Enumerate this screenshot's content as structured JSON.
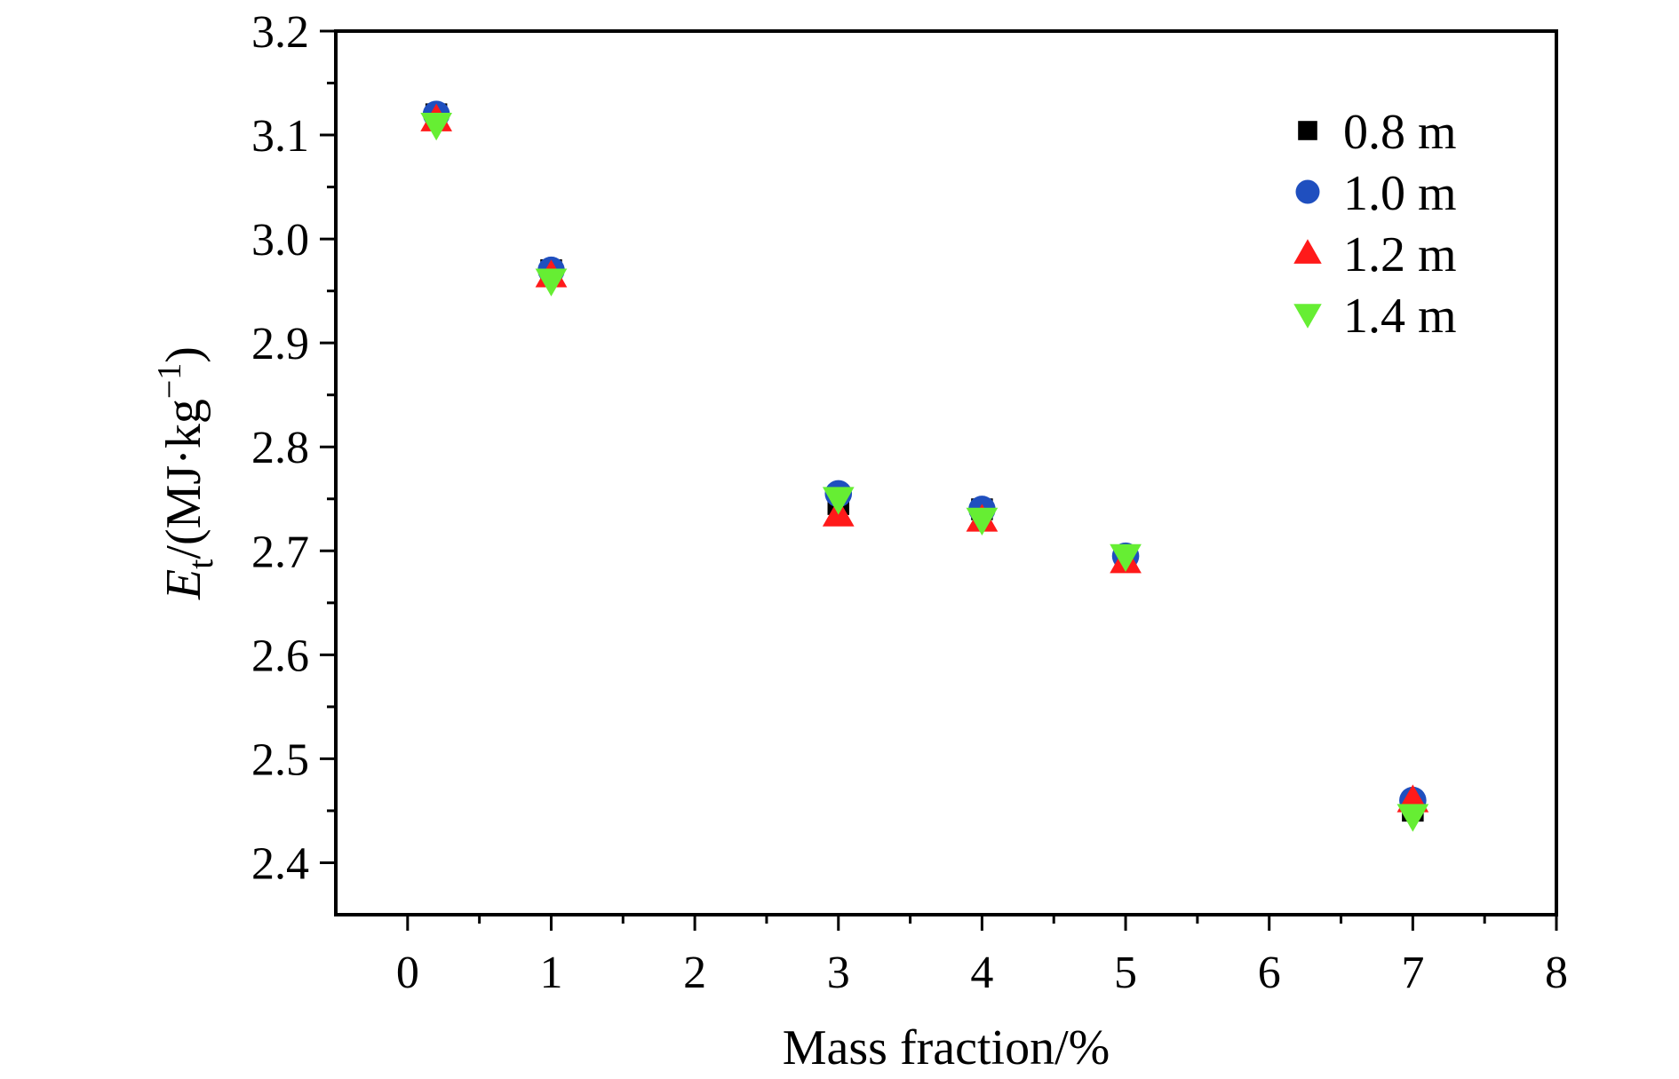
{
  "chart_data": {
    "type": "scatter",
    "title": "",
    "xlabel": "Mass fraction/%",
    "ylabel": {
      "main": "E",
      "sub": "t",
      "rest1": "/(MJ·kg",
      "sup": "−1",
      "rest2": ")"
    },
    "xlim": [
      -0.5,
      8
    ],
    "ylim": [
      2.35,
      3.2
    ],
    "x_ticks": [
      "0",
      "1",
      "2",
      "3",
      "4",
      "5",
      "6",
      "7",
      "8"
    ],
    "y_ticks": [
      "2.4",
      "2.5",
      "2.6",
      "2.7",
      "2.8",
      "2.9",
      "3.0",
      "3.1",
      "3.2"
    ],
    "grid": false,
    "legend_position": "top-right",
    "series": [
      {
        "name": "0.8 m",
        "marker": "square",
        "color": "#000000",
        "points": [
          [
            0.2,
            3.12
          ],
          [
            1,
            2.97
          ],
          [
            3,
            2.745
          ],
          [
            4,
            2.74
          ],
          [
            5,
            2.695
          ],
          [
            7,
            2.45
          ]
        ]
      },
      {
        "name": "1.0 m",
        "marker": "circle",
        "color": "#1f4fbf",
        "points": [
          [
            0.2,
            3.12
          ],
          [
            1,
            2.97
          ],
          [
            3,
            2.755
          ],
          [
            4,
            2.74
          ],
          [
            5,
            2.695
          ],
          [
            7,
            2.46
          ]
        ]
      },
      {
        "name": "1.2 m",
        "marker": "triangle-up",
        "color": "#ff1a1a",
        "points": [
          [
            0.2,
            3.115
          ],
          [
            1,
            2.965
          ],
          [
            3,
            2.735
          ],
          [
            4,
            2.73
          ],
          [
            5,
            2.69
          ],
          [
            7,
            2.46
          ]
        ]
      },
      {
        "name": "1.4 m",
        "marker": "triangle-down",
        "color": "#66ee33",
        "points": [
          [
            0.2,
            3.11
          ],
          [
            1,
            2.96
          ],
          [
            3,
            2.75
          ],
          [
            4,
            2.73
          ],
          [
            5,
            2.695
          ],
          [
            7,
            2.445
          ]
        ]
      }
    ]
  }
}
